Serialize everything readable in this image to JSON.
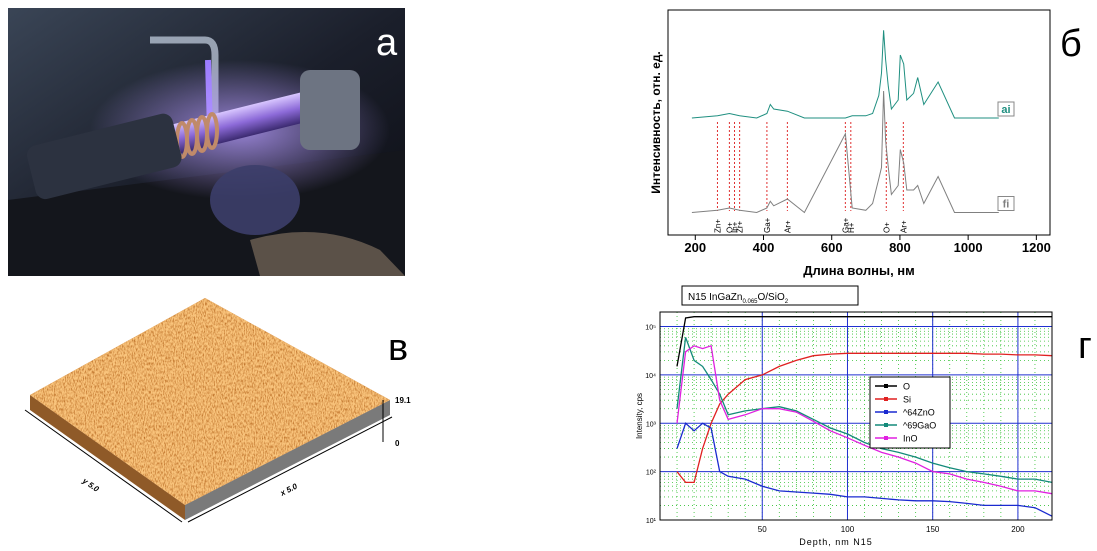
{
  "panel_letters": {
    "a": "а",
    "b": "б",
    "c": "в",
    "d": "г"
  },
  "afm": {
    "z_max": "19.1",
    "z_min": "0",
    "y_label": "y 5.0",
    "x_label": "x 5.0"
  },
  "chart_data": [
    {
      "type": "line",
      "y_label": "Интенсивность, отн. ед.",
      "x_label": "Длина волны, нм",
      "x": [
        190,
        265,
        300,
        330,
        380,
        410,
        420,
        430,
        470,
        520,
        640,
        660,
        700,
        720,
        738,
        746,
        752,
        758,
        766,
        775,
        795,
        801,
        811,
        820,
        840,
        852,
        870,
        912,
        960,
        1090
      ],
      "series": [
        {
          "name": "ai",
          "color": "#1f8f80",
          "values": [
            52,
            53,
            54,
            53,
            52,
            54,
            58,
            56,
            55,
            52,
            52,
            53,
            53,
            54,
            62,
            72,
            91,
            78,
            66,
            56,
            60,
            80,
            76,
            60,
            63,
            70,
            58,
            68,
            52,
            52
          ]
        },
        {
          "name": "fi",
          "color": "#808080",
          "values": [
            10,
            11,
            12,
            11,
            10,
            12,
            15,
            13,
            16,
            10,
            45,
            12,
            11,
            14,
            25,
            30,
            64,
            42,
            30,
            18,
            22,
            38,
            32,
            20,
            20,
            22,
            14,
            26,
            10,
            10
          ]
        }
      ],
      "annotations": [
        {
          "label": "Zn+",
          "x": 265
        },
        {
          "label": "O+",
          "x": 300
        },
        {
          "label": "In+",
          "x": 315
        },
        {
          "label": "Zr+",
          "x": 330
        },
        {
          "label": "Ga+",
          "x": 410
        },
        {
          "label": "Ar+",
          "x": 470
        },
        {
          "label": "Ga+",
          "x": 640
        },
        {
          "label": "H+",
          "x": 656
        },
        {
          "label": "O+",
          "x": 760
        },
        {
          "label": "Ar+",
          "x": 810
        }
      ],
      "annotation_color": "#e03030",
      "xlim": [
        120,
        1240
      ],
      "ylim": [
        0,
        100
      ],
      "xticks": [
        200,
        400,
        600,
        800,
        1000,
        1200
      ]
    },
    {
      "type": "line",
      "title_parts": [
        "N15 InGaZn",
        "0.065",
        "O/SiO",
        "2"
      ],
      "y_label": "Intensity, cps",
      "x_label": "Depth, nm  N15",
      "log_y": true,
      "grid": true,
      "grid_color": "#2030d0",
      "minor_grid_color": "#30c030",
      "legend": "right",
      "x": [
        0,
        5,
        10,
        15,
        20,
        25,
        30,
        40,
        50,
        60,
        70,
        80,
        90,
        100,
        110,
        120,
        130,
        140,
        150,
        160,
        170,
        180,
        190,
        200,
        210,
        220
      ],
      "series": [
        {
          "name": "O",
          "color": "#000000",
          "values": [
            15000,
            150000,
            160000,
            160000,
            160000,
            160000,
            160000,
            160000,
            160000,
            160000,
            160000,
            160000,
            160000,
            160000,
            160000,
            160000,
            160000,
            160000,
            160000,
            160000,
            160000,
            160000,
            160000,
            160000,
            160000,
            160000
          ]
        },
        {
          "name": "Si",
          "color": "#e02020",
          "values": [
            100,
            60,
            60,
            300,
            1000,
            2500,
            4000,
            8000,
            10000,
            15000,
            20000,
            25000,
            27000,
            28000,
            28000,
            28000,
            28000,
            28000,
            28000,
            28000,
            28000,
            27000,
            27000,
            26000,
            26000,
            25000
          ]
        },
        {
          "name": "^64ZnO",
          "color": "#1a2ad0",
          "values": [
            300,
            1000,
            700,
            1000,
            800,
            100,
            80,
            70,
            50,
            40,
            38,
            36,
            34,
            30,
            30,
            28,
            26,
            25,
            25,
            24,
            22,
            20,
            20,
            20,
            18,
            12
          ]
        },
        {
          "name": "^69GaO",
          "color": "#138a7a",
          "values": [
            2000,
            60000,
            20000,
            15000,
            8000,
            4000,
            1500,
            1800,
            2000,
            2200,
            1800,
            1200,
            800,
            600,
            400,
            300,
            250,
            200,
            150,
            120,
            100,
            90,
            80,
            70,
            70,
            60
          ]
        },
        {
          "name": "InO",
          "color": "#e020e0",
          "values": [
            1000,
            30000,
            40000,
            35000,
            40000,
            3000,
            1200,
            1500,
            2000,
            2000,
            1700,
            1100,
            700,
            500,
            350,
            250,
            200,
            150,
            100,
            90,
            70,
            60,
            50,
            40,
            40,
            35
          ]
        }
      ],
      "xlim": [
        -10,
        220
      ],
      "ylim": [
        10,
        200000
      ],
      "xticks": [
        50,
        100,
        150,
        200
      ],
      "yticks": [
        {
          "value": 10,
          "label": "10¹"
        },
        {
          "value": 100,
          "label": "10²"
        },
        {
          "value": 1000,
          "label": "10³"
        },
        {
          "value": 10000,
          "label": "10⁴"
        },
        {
          "value": 100000,
          "label": "10⁵"
        }
      ]
    }
  ]
}
